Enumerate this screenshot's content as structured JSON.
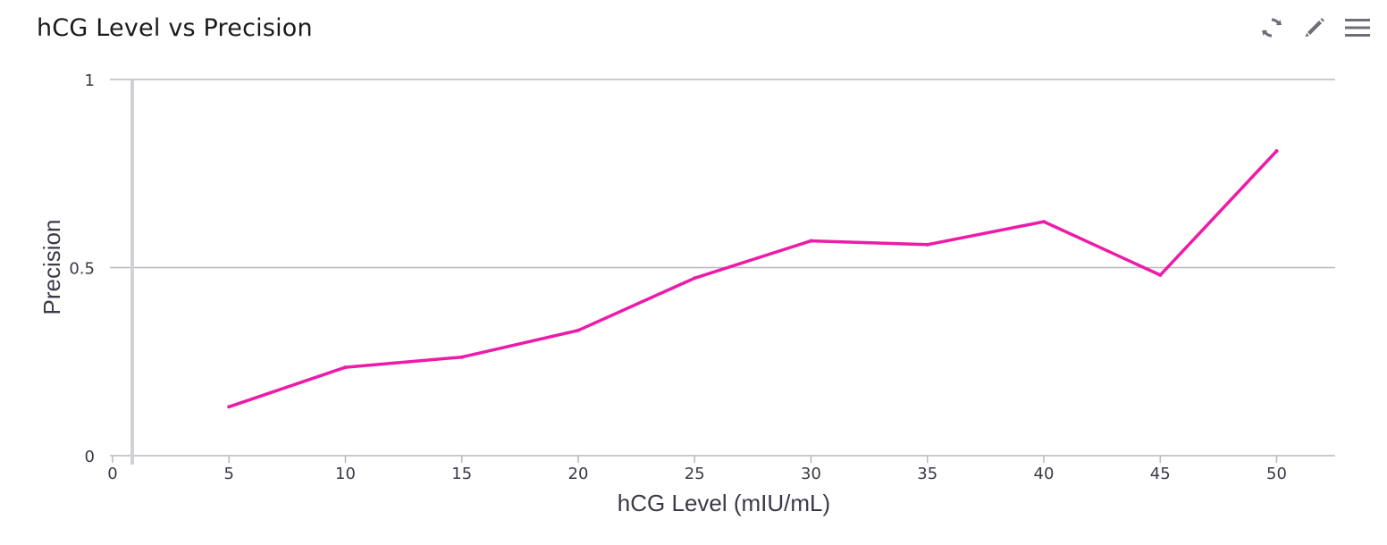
{
  "header": {
    "title": "hCG Level vs Precision",
    "tools": [
      {
        "name": "refresh",
        "icon": "refresh-icon"
      },
      {
        "name": "edit",
        "icon": "pencil-icon"
      },
      {
        "name": "menu",
        "icon": "hamburger-menu-icon"
      }
    ]
  },
  "colors": {
    "series": "#ee1aa8",
    "grid": "#b8b8bc",
    "y_axis_bar": "#d0d0d6",
    "text": "#3a3a48",
    "icon": "#6e6e78"
  },
  "chart_data": {
    "type": "line",
    "xlabel": "hCG Level (mIU/mL)",
    "ylabel": "Precision",
    "xlim": [
      0,
      52
    ],
    "ylim": [
      0,
      1
    ],
    "x_ticks": [
      0,
      5,
      10,
      15,
      20,
      25,
      30,
      35,
      40,
      45,
      50
    ],
    "y_ticks": [
      0,
      0.5,
      1
    ],
    "grid": true,
    "series": [
      {
        "x": [
          5,
          10,
          15,
          20,
          25,
          30,
          35,
          40,
          45,
          50
        ],
        "y": [
          0.13,
          0.235,
          0.262,
          0.333,
          0.472,
          0.571,
          0.561,
          0.622,
          0.48,
          0.81
        ]
      }
    ]
  }
}
